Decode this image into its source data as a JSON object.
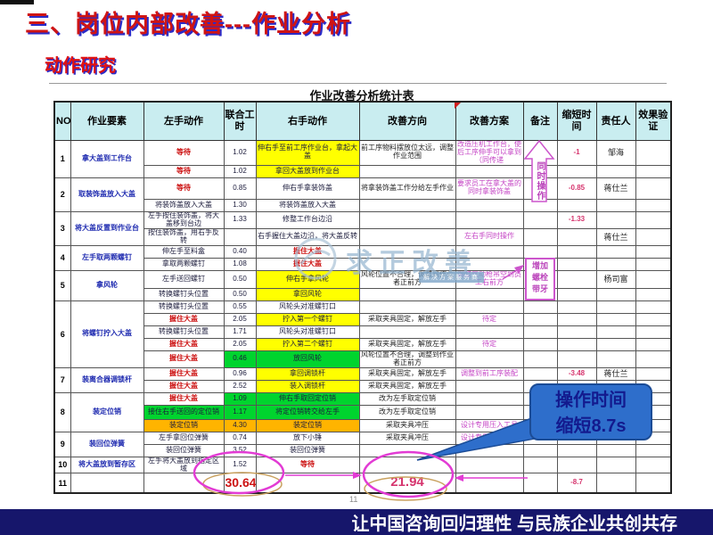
{
  "slide": {
    "title": "三、岗位内部改善---作业分析",
    "subtitle": "动作研究",
    "footer": "让中国咨询回归理性  与民族企业共创共存",
    "page_number": "11"
  },
  "table": {
    "title": "作业改善分析统计表",
    "columns": [
      "NO",
      "作业要素",
      "左手动作",
      "联合工时",
      "右手动作",
      "改善方向",
      "改善方案",
      "备注",
      "缩短时间",
      "责任人",
      "效果验证"
    ],
    "row_groups": [
      {
        "no": "1",
        "elem": "拿大盖到工作台",
        "rows": [
          {
            "h": 26,
            "l": [
              "等待",
              "red"
            ],
            "t": "1.02",
            "r": [
              "伸右手至前工序作业台，拿起大盖",
              "yellow"
            ],
            "d": "前工序物料摆放位太远，调整作业范围",
            "p": "改造压机工作台，使后工序伸手可以拿到（同传递",
            "s": "-1",
            "pr": "邹海"
          },
          {
            "h": 14,
            "l": [
              "等待",
              "red"
            ],
            "t": "1.02",
            "r": [
              "拿回大盖放到作业台",
              "yellow"
            ]
          }
        ]
      },
      {
        "no": "2",
        "elem": "取装饰盖放入大盖",
        "rows": [
          {
            "h": 24,
            "l": [
              "等待",
              "red"
            ],
            "t": "0.85",
            "r": "伸右手拿装饰盖",
            "d": "将拿装饰盖工作分给左手作业",
            "p": "要求员工在拿大盖的同时拿装饰盖",
            "s": "-0.85",
            "pr": "蒋仕兰"
          },
          {
            "h": 14,
            "l": "将装饰盖放入大盖",
            "t": "1.30",
            "r": "将装饰盖放入大盖"
          }
        ]
      },
      {
        "no": "3",
        "elem": "将大盖反置到作业台",
        "rows": [
          {
            "h": 16,
            "l": "左手按住装饰盖，将大盖移到台边",
            "t": "1.33",
            "r": "修整工作台边沿",
            "s": "-1.33"
          },
          {
            "h": 18,
            "l": "按住装饰盖，用右手反转",
            "r": "右手握住大盖边沿，将大盖反转",
            "p": "左右手同时操作",
            "pr": "蒋仕兰"
          }
        ]
      },
      {
        "no": "4",
        "elem": "左手取两颗螺钉",
        "rows": [
          {
            "h": 14,
            "l": "伸左手至料盒",
            "t": "0.40",
            "r": [
              "握住大盖",
              "red"
            ]
          },
          {
            "h": 14,
            "l": "拿取两颗螺钉",
            "t": "1.08",
            "r": [
              "握住大盖",
              "red"
            ]
          }
        ]
      },
      {
        "no": "5",
        "elem": "拿风轮",
        "rows": [
          {
            "h": 20,
            "l": "左手送回螺钉",
            "t": "0.50",
            "r": [
              "伸右手拿风轮",
              "yellow"
            ],
            "d": "风轮位置不合理，调整到作业者正前方",
            "p": "调整气动枪吊空到员工右前方",
            "pr": "杨司富"
          },
          {
            "h": 14,
            "l": "转换螺钉头位置",
            "t": "0.50",
            "r": [
              "拿回风轮",
              "yellow"
            ]
          }
        ]
      },
      {
        "no": "6",
        "elem": "将螺钉拧入大盖",
        "rows": [
          {
            "h": 14,
            "l": "转换螺钉头位置",
            "t": "0.55",
            "r": "风轮头对准螺钉口"
          },
          {
            "h": 14,
            "l": [
              "握住大盖",
              "red"
            ],
            "t": "2.05",
            "r": [
              "拧入第一个螺钉",
              "yellow"
            ],
            "d": "采取夹具固定，解放左手",
            "p": "待定"
          },
          {
            "h": 14,
            "l": "转换螺钉头位置",
            "t": "1.71",
            "r": "风轮头对准螺钉口"
          },
          {
            "h": 14,
            "l": [
              "握住大盖",
              "red"
            ],
            "t": "2.05",
            "r": [
              "拧入第二个螺钉",
              "yellow"
            ],
            "d": "采取夹具固定，解放左手",
            "p": "待定"
          },
          {
            "h": 18,
            "l": [
              "握住大盖",
              "red"
            ],
            "t": [
              "0.46",
              "green"
            ],
            "r": [
              "放回风轮",
              "green"
            ],
            "d": "风轮位置不合理，调整到作业者正前方"
          }
        ]
      },
      {
        "no": "7",
        "elem": "装离合器调锁杆",
        "rows": [
          {
            "h": 14,
            "l": [
              "握住大盖",
              "red"
            ],
            "t": "0.96",
            "r": [
              "拿回调锁杆",
              "yellow"
            ],
            "d": "采取夹具固定，解放左手",
            "p": "调整到前工序装配",
            "s": "-3.48",
            "pr": "蒋仕兰"
          },
          {
            "h": 14,
            "l": [
              "握住大盖",
              "red"
            ],
            "t": "2.52",
            "r": [
              "装入调锁杆",
              "yellow"
            ],
            "d": "采取夹具固定，解放左手"
          }
        ]
      },
      {
        "no": "8",
        "elem": "装定位销",
        "rows": [
          {
            "h": 14,
            "l": [
              "握住大盖",
              "red"
            ],
            "t": [
              "1.09",
              "green"
            ],
            "r": [
              "伸右手取回定位销",
              "green"
            ],
            "d": "改为左手取定位销"
          },
          {
            "h": 16,
            "l": [
              "接住右手送回的定位销",
              "green"
            ],
            "t": [
              "1.17",
              "green"
            ],
            "r": [
              "将定位销转交给左手",
              "green"
            ],
            "d": "改为左手取定位销"
          },
          {
            "h": 14,
            "l": [
              "装定位销",
              "orange"
            ],
            "t": [
              "4.30",
              "orange"
            ],
            "r": [
              "装定位销",
              "orange"
            ],
            "d": "采取夹具冲压",
            "p": "设计专用压入工具"
          }
        ]
      },
      {
        "no": "9",
        "elem": "装回位弹簧",
        "rows": [
          {
            "h": 14,
            "l": "左手拿回位弹簧",
            "t": "0.74",
            "r": "放下小锤",
            "d": "采取夹具冲压",
            "p": "设计专用压入工具"
          },
          {
            "h": 14,
            "l": "装回位弹簧",
            "t": "3.52",
            "r": "装回位弹簧"
          }
        ]
      },
      {
        "no": "10",
        "elem": "将大盖放到暂存区",
        "rows": [
          {
            "h": 16,
            "l": "左手将大盖放到指定区域",
            "t": "1.52",
            "r": [
              "等待",
              "red"
            ]
          }
        ]
      },
      {
        "no": "11",
        "elem": "",
        "rows": [
          {
            "h": 22,
            "t": [
              "30.64",
              "total"
            ],
            "d": [
              "21.94",
              "improved"
            ],
            "s": "-8.7"
          }
        ]
      }
    ]
  },
  "annotations": {
    "note_arrow_label": "同时操作",
    "note_box_label": "增加螺栓带牙",
    "callout_line1": "操作时间",
    "callout_line2": "缩短8.7s",
    "watermark": "求正改善",
    "watermark_sub": "解决方案服务商"
  },
  "colors": {
    "highlight_yellow": "#ffff00",
    "highlight_green": "#00d42e",
    "highlight_orange": "#ffb400",
    "annotation_magenta": "#cc55cc",
    "callout_blue": "#2e6ecb",
    "footer_navy": "#16166b",
    "title_red": "#cf1414"
  }
}
